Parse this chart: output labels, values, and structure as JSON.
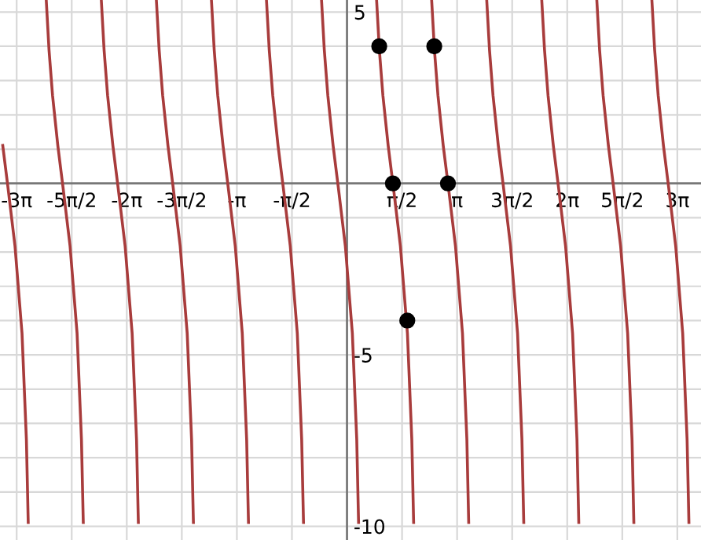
{
  "chart_data": {
    "type": "line",
    "xlim": [
      -9.9,
      10.1
    ],
    "ylim": [
      -10.4,
      5.35
    ],
    "xticks": [
      {
        "value": -9.4248,
        "label": "-3π"
      },
      {
        "value": -7.854,
        "label": "-5π/2"
      },
      {
        "value": -6.2832,
        "label": "-2π"
      },
      {
        "value": -4.7124,
        "label": "-3π/2"
      },
      {
        "value": -3.1416,
        "label": "-π"
      },
      {
        "value": -1.5708,
        "label": "-π/2"
      },
      {
        "value": 1.5708,
        "label": "π/2"
      },
      {
        "value": 3.1416,
        "label": "π"
      },
      {
        "value": 4.7124,
        "label": "3π/2"
      },
      {
        "value": 6.2832,
        "label": "2π"
      },
      {
        "value": 7.854,
        "label": "5π/2"
      },
      {
        "value": 9.4248,
        "label": "3π"
      }
    ],
    "yticks": [
      -10,
      {
        "value": -9,
        "label": null
      },
      {
        "value": -8,
        "label": null
      },
      {
        "value": -7,
        "label": null
      },
      {
        "value": -6,
        "label": null
      },
      -5,
      {
        "value": -4,
        "label": null
      },
      {
        "value": -3,
        "label": null
      },
      {
        "value": -2,
        "label": null
      },
      {
        "value": -1,
        "label": null
      },
      {
        "value": 1,
        "label": null
      },
      {
        "value": 2,
        "label": null
      },
      {
        "value": 3,
        "label": null
      },
      {
        "value": 4,
        "label": null
      },
      5
    ],
    "grid": true,
    "marker": "none",
    "line_style": "solid",
    "series": [
      {
        "color": "#a83c3c",
        "x": [
          -9.822,
          -9.672,
          -9.472,
          -9.272,
          -9.147,
          -9.095
        ],
        "values": [
          1.11,
          -0.12,
          -1.83,
          -4.37,
          -7.47,
          -9.89
        ]
      },
      {
        "color": "#a83c3c",
        "x": [
          -8.579,
          -8.501,
          -8.401,
          -8.251,
          -8.101,
          -7.901,
          -7.701,
          -7.576,
          -7.524
        ],
        "values": [
          5.32,
          3.89,
          2.57,
          1.11,
          -0.12,
          -1.83,
          -4.37,
          -7.47,
          -9.89
        ]
      },
      {
        "color": "#a83c3c",
        "x": [
          -7.008,
          -6.93,
          -6.83,
          -6.68,
          -6.53,
          -6.33,
          -6.13,
          -6.005,
          -5.953
        ],
        "values": [
          5.32,
          3.89,
          2.57,
          1.11,
          -0.12,
          -1.83,
          -4.37,
          -7.47,
          -9.89
        ]
      },
      {
        "color": "#a83c3c",
        "x": [
          -5.437,
          -5.359,
          -5.259,
          -5.109,
          -4.959,
          -4.759,
          -4.559,
          -4.434,
          -4.382
        ],
        "values": [
          5.32,
          3.89,
          2.57,
          1.11,
          -0.12,
          -1.83,
          -4.37,
          -7.47,
          -9.89
        ]
      },
      {
        "color": "#a83c3c",
        "x": [
          -3.866,
          -3.788,
          -3.688,
          -3.538,
          -3.388,
          -3.188,
          -2.988,
          -2.863,
          -2.811
        ],
        "values": [
          5.32,
          3.89,
          2.57,
          1.11,
          -0.12,
          -1.83,
          -4.37,
          -7.47,
          -9.89
        ]
      },
      {
        "color": "#a83c3c",
        "x": [
          -2.296,
          -2.218,
          -2.118,
          -1.968,
          -1.818,
          -1.618,
          -1.418,
          -1.293,
          -1.241
        ],
        "values": [
          5.32,
          3.89,
          2.57,
          1.11,
          -0.12,
          -1.83,
          -4.37,
          -7.47,
          -9.89
        ]
      },
      {
        "color": "#a83c3c",
        "x": [
          -0.725,
          -0.647,
          -0.547,
          -0.397,
          -0.247,
          -0.047,
          0.153,
          0.278,
          0.33
        ],
        "values": [
          5.32,
          3.89,
          2.57,
          1.11,
          -0.12,
          -1.83,
          -4.37,
          -7.47,
          -9.89
        ]
      },
      {
        "color": "#a83c3c",
        "x": [
          0.846,
          0.924,
          1.024,
          1.174,
          1.324,
          1.524,
          1.724,
          1.849,
          1.901
        ],
        "values": [
          5.32,
          3.89,
          2.57,
          1.11,
          -0.12,
          -1.83,
          -4.37,
          -7.47,
          -9.89
        ]
      },
      {
        "color": "#a83c3c",
        "x": [
          2.417,
          2.495,
          2.595,
          2.745,
          2.895,
          3.095,
          3.295,
          3.42,
          3.472
        ],
        "values": [
          5.32,
          3.89,
          2.57,
          1.11,
          -0.12,
          -1.83,
          -4.37,
          -7.47,
          -9.89
        ]
      },
      {
        "color": "#a83c3c",
        "x": [
          3.988,
          4.066,
          4.166,
          4.316,
          4.466,
          4.666,
          4.866,
          4.991,
          5.043
        ],
        "values": [
          5.32,
          3.89,
          2.57,
          1.11,
          -0.12,
          -1.83,
          -4.37,
          -7.47,
          -9.89
        ]
      },
      {
        "color": "#a83c3c",
        "x": [
          5.558,
          5.636,
          5.736,
          5.886,
          6.036,
          6.236,
          6.436,
          6.561,
          6.613
        ],
        "values": [
          5.32,
          3.89,
          2.57,
          1.11,
          -0.12,
          -1.83,
          -4.37,
          -7.47,
          -9.89
        ]
      },
      {
        "color": "#a83c3c",
        "x": [
          7.129,
          7.207,
          7.307,
          7.457,
          7.607,
          7.807,
          8.007,
          8.132,
          8.184
        ],
        "values": [
          5.32,
          3.89,
          2.57,
          1.11,
          -0.12,
          -1.83,
          -4.37,
          -7.47,
          -9.89
        ]
      },
      {
        "color": "#a83c3c",
        "x": [
          8.7,
          8.778,
          8.878,
          9.028,
          9.178,
          9.378,
          9.578,
          9.703,
          9.755
        ],
        "values": [
          5.32,
          3.89,
          2.57,
          1.11,
          -0.12,
          -1.83,
          -4.37,
          -7.47,
          -9.89
        ]
      },
      {
        "type": "scatter",
        "color": "#000000",
        "marker": "circle",
        "x": [
          0.92,
          2.49,
          1.31,
          2.88,
          1.72
        ],
        "values": [
          4,
          4,
          0,
          0,
          -4
        ]
      }
    ]
  }
}
